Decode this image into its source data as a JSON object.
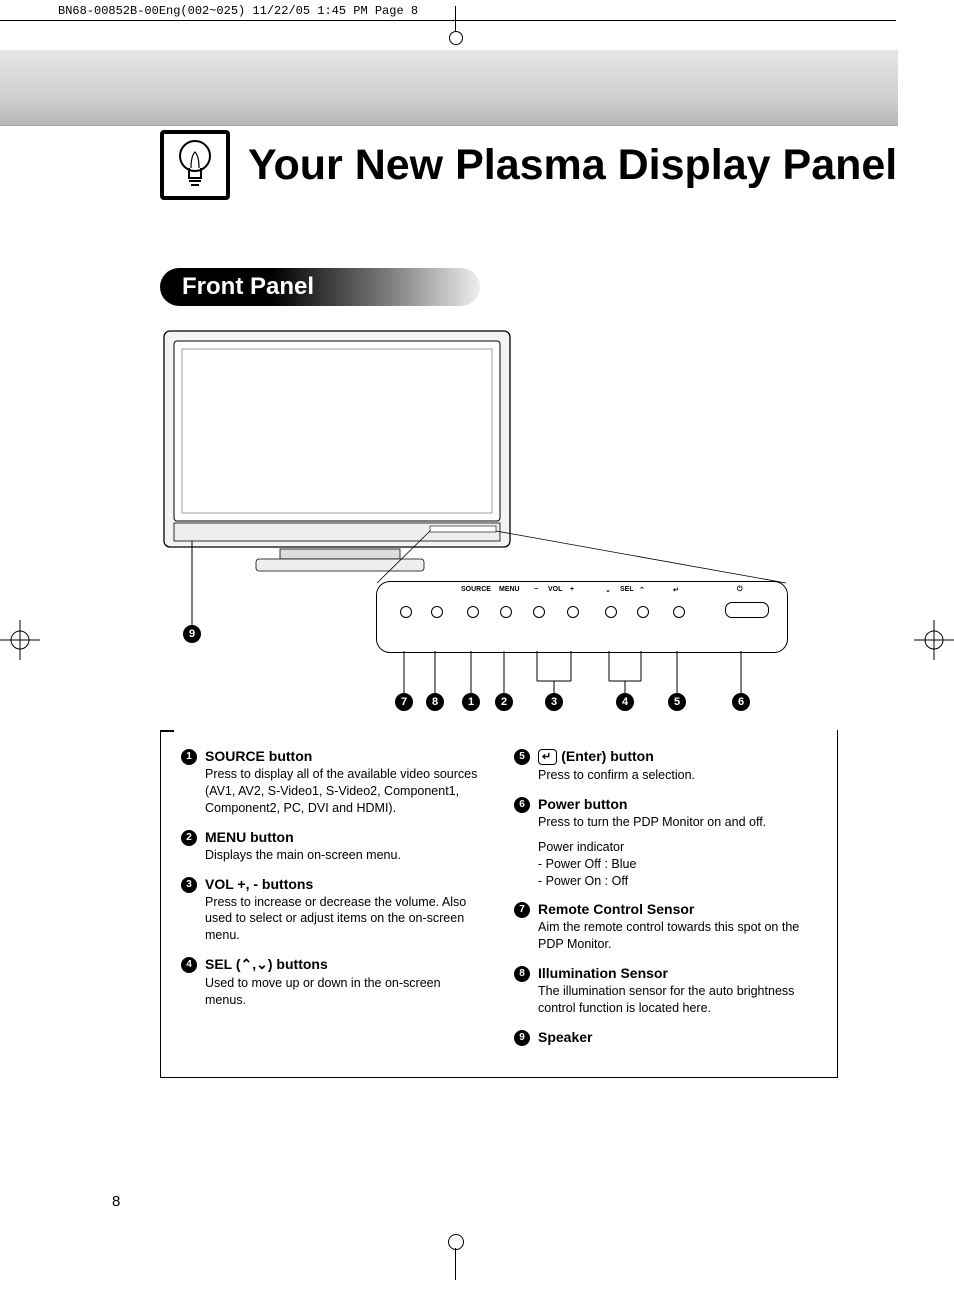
{
  "crop_header": "BN68-00852B-00Eng(002~025)  11/22/05  1:45 PM  Page 8",
  "main_title": "Your New Plasma Display Panel",
  "section_title": "Front Panel",
  "page_number": "8",
  "panel_labels": {
    "source": "SOURCE",
    "menu": "MENU",
    "vol_minus": "−",
    "vol": "VOL",
    "vol_plus": "+",
    "sel_down": "⌄",
    "sel": "SEL",
    "sel_up": "⌃",
    "enter": "↵",
    "power": "⏻"
  },
  "diagram_callouts": [
    "7",
    "8",
    "1",
    "2",
    "3",
    "4",
    "5",
    "6"
  ],
  "speaker_callout": "9",
  "items_left": [
    {
      "num": "1",
      "title": "SOURCE button",
      "body": "Press to display all of the available video sources (AV1, AV2, S-Video1, S-Video2, Component1, Component2, PC, DVI and HDMI)."
    },
    {
      "num": "2",
      "title": "MENU button",
      "body": "Displays the main on-screen menu."
    },
    {
      "num": "3",
      "title": "VOL +, - buttons",
      "body": "Press to increase or decrease the volume. Also used to select or adjust items on the on-screen menu."
    },
    {
      "num": "4",
      "title": "SEL (⌃,⌄) buttons",
      "body": "Used to move up or down in the on-screen menus."
    }
  ],
  "items_right": [
    {
      "num": "5",
      "title_prefix_glyph": "↵",
      "title": "(Enter) button",
      "body": "Press to confirm a selection."
    },
    {
      "num": "6",
      "title": "Power button",
      "body": "Press to turn the PDP Monitor on and off.",
      "extra": "Power indicator\n- Power Off : Blue\n- Power On : Off"
    },
    {
      "num": "7",
      "title": "Remote Control Sensor",
      "body": "Aim the remote control towards this spot on the PDP Monitor."
    },
    {
      "num": "8",
      "title": "Illumination Sensor",
      "body": "The illumination sensor for the auto brightness control function is located here."
    },
    {
      "num": "9",
      "title": "Speaker",
      "body": ""
    }
  ]
}
